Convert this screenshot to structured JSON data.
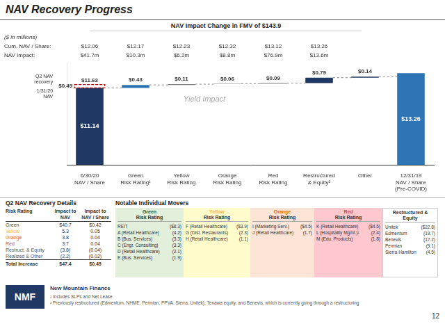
{
  "chart_data": {
    "type": "waterfall",
    "title": "NAV Recovery Progress",
    "subtitle": "NAV Impact Change in FMV of $143.9",
    "categories": [
      "6/30/20\nNAV / Share",
      "Green\nRisk Rating¹",
      "Yellow\nRisk Rating",
      "Orange\nRisk Rating",
      "Red\nRisk Rating",
      "Restructured\n& Equity²",
      "Other",
      "12/31/19\nNAV / Share\n(Pre-COVID)"
    ],
    "values": [
      11.14,
      0.43,
      0.11,
      0.06,
      0.09,
      0.79,
      0.14,
      13.26
    ],
    "value_labels": [
      "$11.14",
      "$0.43",
      "$0.11",
      "$0.06",
      "$0.09",
      "$0.79",
      "$0.14",
      "$13.26"
    ],
    "data_labels": true,
    "colors": [
      "#1f3864",
      "#2e75b6",
      "#808080",
      "#808080",
      "#808080",
      "#1f3864",
      "#1f3864",
      "#2e75b6"
    ],
    "ylim": [
      0,
      14.8
    ],
    "yticks": [],
    "grid": false,
    "tick_labels": "x",
    "header_note": "($ in millions)",
    "header_rows": [
      {
        "label": "Cum. NAV / Share:",
        "cells": [
          "$12.06",
          "$12.17",
          "$12.23",
          "$12.32",
          "$13.12",
          "$13.26"
        ]
      },
      {
        "label": "NAV Impact:",
        "cells": [
          "$41.7m",
          "$10.3m",
          "$6.2m",
          "$8.8m",
          "$76.9m",
          "$13.6m"
        ]
      }
    ],
    "recovery_box": {
      "from": 11.14,
      "to": 11.63,
      "label": "$0.49",
      "top_label": "$11.63",
      "side_label": "Q2 NAV\nrecovery",
      "base_label": "1/31/20\nNAV",
      "color": "#c00000"
    },
    "watermark": "Yield Impact",
    "recovery_details": {
      "title": "Q2 NAV Recovery Details",
      "columns": [
        "Risk Rating",
        "Impact to\nNAV",
        "Impact to\nNAV / Share"
      ],
      "rows": [
        {
          "cells": [
            "Green",
            "$40.7",
            "$0.42"
          ],
          "color": "#375623"
        },
        {
          "cells": [
            "Yellow",
            "5.3",
            "0.05"
          ],
          "color": "#f4b942"
        },
        {
          "cells": [
            "Orange",
            "3.8",
            "0.04"
          ],
          "color": "#e26b0a"
        },
        {
          "cells": [
            "Red",
            "3.7",
            "0.04"
          ],
          "color": "#c0504d"
        },
        {
          "cells": [
            "Restruct. & Equity",
            "(3.8)",
            "(0.04)"
          ],
          "color": "#555555"
        },
        {
          "cells": [
            "Realized & Other",
            "(2.2)",
            "(0.02)"
          ],
          "color": "#555555"
        },
        {
          "cells": [
            "Total Increase",
            "$47.4",
            "$0.49"
          ],
          "color": "#333333"
        }
      ]
    },
    "movers": {
      "title": "Notable Individual Movers",
      "groups": [
        {
          "name": "Green",
          "subtitle": "Risk Rating",
          "color": "#375623",
          "background": "#e2efda",
          "items": [
            [
              "REIT",
              "($8.3)"
            ],
            [
              "A (Retail Healthcare)",
              "(4.2)"
            ],
            [
              "B (Bus. Services)",
              "(3.3)"
            ],
            [
              "C (Engr. Consulting)",
              "(3.3)"
            ],
            [
              "D (Retail Healthcare)",
              "(2.1)"
            ],
            [
              "E (Bus. Services)",
              "(1.9)"
            ]
          ]
        },
        {
          "name": "Yellow",
          "subtitle": "Risk Rating",
          "color": "#f4b942",
          "background": "#fffccc",
          "items": [
            [
              "F (Retail Healthcare)",
              "($3.9)"
            ],
            [
              "G (Dist. Restaurants)",
              "(2.3)"
            ],
            [
              "H (Retail Healthcare)",
              "(1.1)"
            ]
          ]
        },
        {
          "name": "Orange",
          "subtitle": "Risk Rating",
          "color": "#e26b0a",
          "background": "#fce4d6",
          "items": [
            [
              "I (Marketing Serv.)",
              "($4.5)"
            ],
            [
              "J (Retail Healthcare)",
              "(1.7)"
            ]
          ]
        },
        {
          "name": "Red",
          "subtitle": "Risk Rating",
          "color": "#c0504d",
          "background": "#ffc7ce",
          "items": [
            [
              "K (Retail Healthcare)",
              "($4.5)"
            ],
            [
              "L (Hospitality Mgmt.)²",
              "(2.4)"
            ],
            [
              "M (Edu. Products)",
              "(1.8)"
            ]
          ]
        },
        {
          "name": "Restructured & Equity",
          "color": "#333333",
          "background": "#ffffff",
          "items": [
            [
              "Unitek",
              "($22.8)"
            ],
            [
              "Edmentum",
              "(19.7)"
            ],
            [
              "Benevis",
              "(17.2)"
            ],
            [
              "Permian",
              "(9.1)"
            ],
            [
              "Sierra Hamilton",
              "(4.5)"
            ]
          ]
        }
      ]
    },
    "footer": {
      "logo": "NMF",
      "color": "#1f3864",
      "company": "New Mountain Finance",
      "footnotes": [
        "¹ Includes SLPs and Net Lease",
        "² Previously restructured (Edmentum, NHME, Permian, PPVA, Sierra, Unitek), Tenawa equity, and Benevis, which is currently going through a restructuring"
      ],
      "page": "12"
    }
  }
}
